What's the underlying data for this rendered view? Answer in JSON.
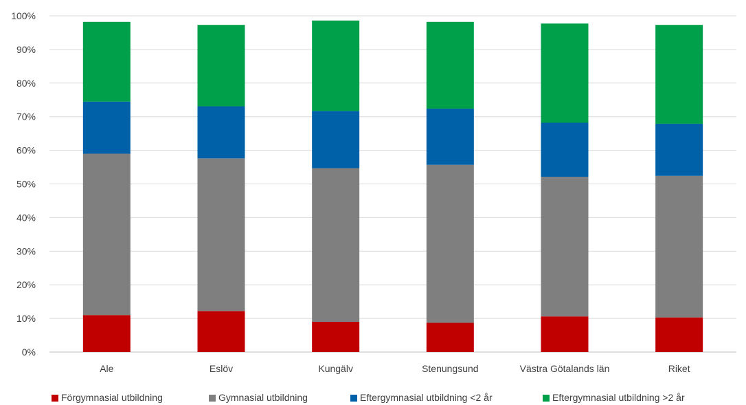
{
  "chart_data": {
    "type": "bar",
    "stacked": true,
    "categories": [
      "Ale",
      "Eslöv",
      "Kungälv",
      "Stenungsund",
      "Västra Götalands län",
      "Riket"
    ],
    "series": [
      {
        "name": "Förgymnasial utbildning",
        "color": "#c00000",
        "values": [
          11.0,
          12.2,
          9.0,
          8.7,
          10.6,
          10.3
        ]
      },
      {
        "name": "Gymnasial utbildning",
        "color": "#7f7f7f",
        "values": [
          48.0,
          45.4,
          45.7,
          47.0,
          41.5,
          42.1
        ]
      },
      {
        "name": "Eftergymnasial utbildning <2 år",
        "color": "#0060a8",
        "values": [
          15.5,
          15.5,
          17.0,
          16.7,
          16.1,
          15.5
        ]
      },
      {
        "name": "Eftergymnasial utbildning >2 år",
        "color": "#00a04a",
        "values": [
          23.7,
          24.2,
          26.9,
          25.8,
          29.5,
          29.4
        ]
      }
    ],
    "ylim": [
      0,
      100
    ],
    "yticks": [
      "0%",
      "10%",
      "20%",
      "30%",
      "40%",
      "50%",
      "60%",
      "70%",
      "80%",
      "90%",
      "100%"
    ],
    "grid": true,
    "legend_position": "bottom",
    "title": "",
    "xlabel": "",
    "ylabel": ""
  }
}
